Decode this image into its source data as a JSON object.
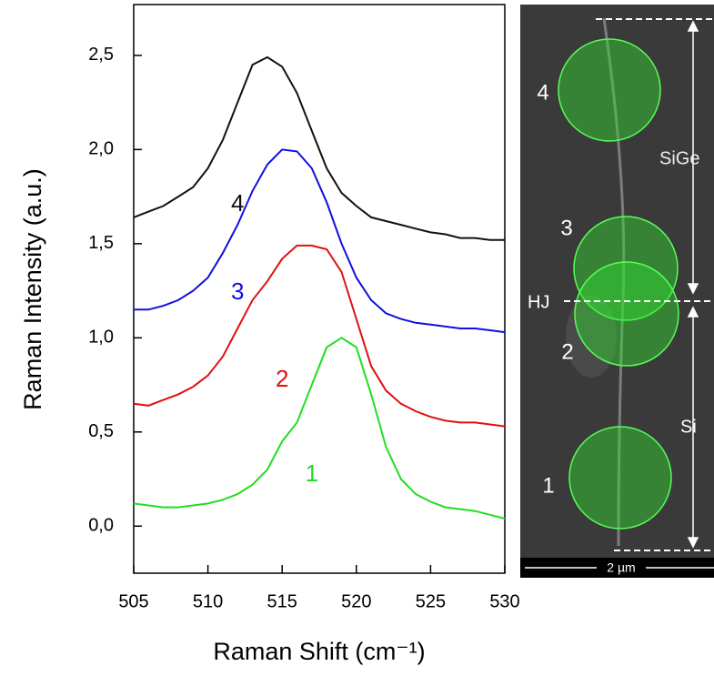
{
  "chart_data": {
    "type": "line",
    "x_label": "Raman Shift (cm⁻¹)",
    "y_label": "Raman Intensity (a.u.)",
    "x": [
      505,
      506,
      507,
      508,
      509,
      510,
      511,
      512,
      513,
      514,
      515,
      516,
      517,
      518,
      519,
      520,
      521,
      522,
      523,
      524,
      525,
      526,
      527,
      528,
      529,
      530
    ],
    "series": [
      {
        "name": "1",
        "color": "#22dd22",
        "values": [
          0.12,
          0.11,
          0.1,
          0.1,
          0.11,
          0.12,
          0.14,
          0.17,
          0.22,
          0.3,
          0.45,
          0.55,
          0.75,
          0.95,
          1.0,
          0.95,
          0.7,
          0.42,
          0.25,
          0.17,
          0.13,
          0.1,
          0.09,
          0.08,
          0.06,
          0.04
        ]
      },
      {
        "name": "2",
        "color": "#e01010",
        "values": [
          0.65,
          0.64,
          0.67,
          0.7,
          0.74,
          0.8,
          0.9,
          1.05,
          1.2,
          1.3,
          1.42,
          1.49,
          1.49,
          1.47,
          1.35,
          1.1,
          0.85,
          0.72,
          0.65,
          0.61,
          0.58,
          0.56,
          0.55,
          0.55,
          0.54,
          0.53
        ]
      },
      {
        "name": "3",
        "color": "#1010dd",
        "values": [
          1.15,
          1.15,
          1.17,
          1.2,
          1.25,
          1.32,
          1.45,
          1.6,
          1.78,
          1.92,
          2.0,
          1.99,
          1.9,
          1.72,
          1.5,
          1.32,
          1.2,
          1.13,
          1.1,
          1.08,
          1.07,
          1.06,
          1.05,
          1.05,
          1.04,
          1.03
        ]
      },
      {
        "name": "4",
        "color": "#111111",
        "values": [
          1.64,
          1.67,
          1.7,
          1.75,
          1.8,
          1.9,
          2.05,
          2.25,
          2.45,
          2.49,
          2.44,
          2.3,
          2.1,
          1.9,
          1.77,
          1.7,
          1.64,
          1.62,
          1.6,
          1.58,
          1.56,
          1.55,
          1.53,
          1.53,
          1.52,
          1.52
        ]
      }
    ],
    "xlim": [
      505,
      530
    ],
    "xticks": [
      505,
      510,
      515,
      520,
      525,
      530
    ],
    "ylim": [
      -0.25,
      2.77
    ],
    "yticks": [
      {
        "value": 0,
        "label": "0,0"
      },
      {
        "value": 0.5,
        "label": "0,5"
      },
      {
        "value": 1,
        "label": "1,0"
      },
      {
        "value": 1.5,
        "label": "1,5"
      },
      {
        "value": 2,
        "label": "2,0"
      },
      {
        "value": 2.5,
        "label": "2,5"
      }
    ]
  },
  "micrograph": {
    "spot_labels": [
      "1",
      "2",
      "3",
      "4"
    ],
    "regions": [
      "SiGe",
      "HJ",
      "Si"
    ],
    "scale_bar": "2 µm"
  }
}
